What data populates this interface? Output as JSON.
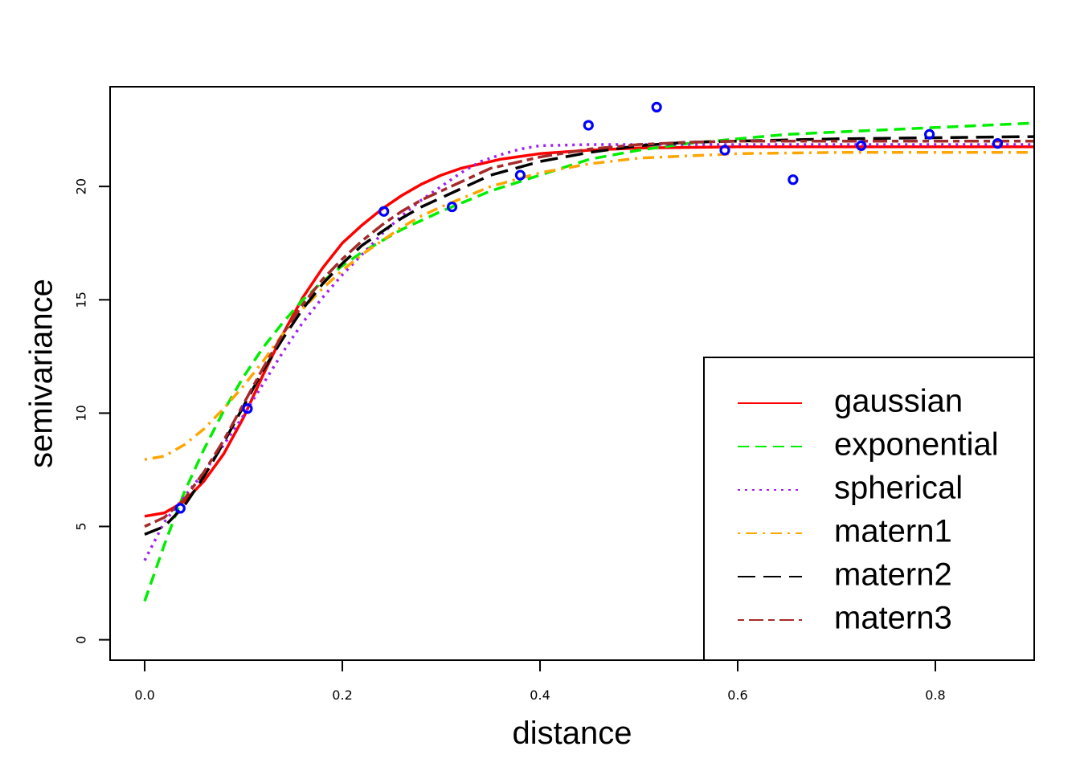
{
  "chart_data": {
    "type": "scatter",
    "title": "",
    "xlabel": "distance",
    "ylabel": "semivariance",
    "xlim": [
      -0.035,
      0.9
    ],
    "ylim": [
      -0.9,
      24.4
    ],
    "x_ticks": [
      0.0,
      0.2,
      0.4,
      0.6,
      0.8
    ],
    "x_tick_labels": [
      "0.0",
      "0.2",
      "0.4",
      "0.6",
      "0.8"
    ],
    "y_ticks": [
      0,
      5,
      10,
      15,
      20
    ],
    "y_tick_labels": [
      "0",
      "5",
      "10",
      "15",
      "20"
    ],
    "grid": false,
    "legend_position": "bottom-right",
    "points": {
      "color": "#0000ff",
      "x": [
        0.036,
        0.104,
        0.242,
        0.311,
        0.38,
        0.449,
        0.518,
        0.587,
        0.656,
        0.725,
        0.794,
        0.863
      ],
      "y": [
        5.8,
        10.2,
        18.9,
        19.1,
        20.5,
        22.7,
        23.5,
        21.6,
        20.3,
        21.8,
        22.3,
        21.9
      ]
    },
    "series": [
      {
        "name": "gaussian",
        "color": "#ff0000",
        "dash": "solid",
        "x": [
          0.0,
          0.02,
          0.04,
          0.06,
          0.08,
          0.1,
          0.12,
          0.14,
          0.16,
          0.18,
          0.2,
          0.22,
          0.24,
          0.26,
          0.28,
          0.3,
          0.32,
          0.34,
          0.36,
          0.4,
          0.45,
          0.5,
          0.6,
          0.7,
          0.8,
          0.9
        ],
        "y": [
          5.45,
          5.6,
          6.1,
          7.0,
          8.2,
          9.8,
          11.7,
          13.5,
          15.1,
          16.4,
          17.5,
          18.3,
          19.0,
          19.6,
          20.1,
          20.5,
          20.8,
          21.0,
          21.2,
          21.45,
          21.6,
          21.7,
          21.75,
          21.75,
          21.75,
          21.75
        ]
      },
      {
        "name": "exponential",
        "color": "#00ee00",
        "dash": "dashed",
        "x": [
          0.0,
          0.02,
          0.04,
          0.06,
          0.08,
          0.1,
          0.12,
          0.14,
          0.16,
          0.18,
          0.2,
          0.22,
          0.24,
          0.26,
          0.28,
          0.3,
          0.35,
          0.4,
          0.45,
          0.5,
          0.55,
          0.6,
          0.65,
          0.7,
          0.8,
          0.9
        ],
        "y": [
          1.7,
          4.2,
          6.5,
          8.4,
          10.1,
          11.6,
          12.9,
          14.0,
          15.0,
          15.8,
          16.5,
          17.1,
          17.6,
          18.1,
          18.5,
          18.9,
          19.8,
          20.5,
          21.2,
          21.6,
          21.9,
          22.1,
          22.3,
          22.4,
          22.6,
          22.8
        ]
      },
      {
        "name": "spherical",
        "color": "#a020f0",
        "dash": "dotted",
        "x": [
          0.0,
          0.02,
          0.04,
          0.06,
          0.08,
          0.1,
          0.12,
          0.14,
          0.16,
          0.18,
          0.2,
          0.22,
          0.24,
          0.26,
          0.28,
          0.3,
          0.32,
          0.34,
          0.36,
          0.38,
          0.4,
          0.45,
          0.5,
          0.6,
          0.7,
          0.8,
          0.9
        ],
        "y": [
          3.5,
          5.2,
          6.3,
          7.4,
          8.6,
          9.9,
          11.3,
          12.7,
          14.0,
          15.1,
          16.1,
          17.0,
          17.9,
          18.7,
          19.4,
          20.0,
          20.6,
          21.1,
          21.4,
          21.65,
          21.8,
          21.85,
          21.85,
          21.85,
          21.85,
          21.85,
          21.85
        ]
      },
      {
        "name": "matern1",
        "color": "#ffa500",
        "dash": "dashdot",
        "x": [
          0.0,
          0.02,
          0.04,
          0.06,
          0.08,
          0.1,
          0.12,
          0.14,
          0.16,
          0.18,
          0.2,
          0.22,
          0.24,
          0.26,
          0.28,
          0.3,
          0.35,
          0.4,
          0.45,
          0.5,
          0.6,
          0.7,
          0.8,
          0.9
        ],
        "y": [
          7.95,
          8.1,
          8.6,
          9.3,
          10.2,
          11.2,
          12.3,
          13.5,
          14.6,
          15.5,
          16.3,
          17.0,
          17.6,
          18.2,
          18.7,
          19.1,
          20.0,
          20.6,
          21.0,
          21.25,
          21.45,
          21.5,
          21.5,
          21.5
        ]
      },
      {
        "name": "matern2",
        "color": "#000000",
        "dash": "longdash",
        "x": [
          0.0,
          0.02,
          0.04,
          0.06,
          0.08,
          0.1,
          0.12,
          0.14,
          0.16,
          0.18,
          0.2,
          0.22,
          0.24,
          0.26,
          0.28,
          0.3,
          0.35,
          0.4,
          0.45,
          0.5,
          0.55,
          0.6,
          0.7,
          0.8,
          0.9
        ],
        "y": [
          4.65,
          5.0,
          5.9,
          7.2,
          8.7,
          10.3,
          11.9,
          13.3,
          14.6,
          15.7,
          16.6,
          17.4,
          18.0,
          18.6,
          19.1,
          19.5,
          20.5,
          21.1,
          21.5,
          21.8,
          21.95,
          22.0,
          22.1,
          22.15,
          22.2
        ]
      },
      {
        "name": "matern3",
        "color": "#a52a2a",
        "dash": "twodash",
        "x": [
          0.0,
          0.02,
          0.04,
          0.06,
          0.08,
          0.1,
          0.12,
          0.14,
          0.16,
          0.18,
          0.2,
          0.22,
          0.24,
          0.26,
          0.28,
          0.3,
          0.35,
          0.4,
          0.45,
          0.5,
          0.55,
          0.6,
          0.7,
          0.8,
          0.9
        ],
        "y": [
          5.0,
          5.4,
          6.2,
          7.4,
          8.8,
          10.4,
          12.0,
          13.5,
          14.8,
          15.9,
          16.8,
          17.6,
          18.3,
          18.9,
          19.4,
          19.8,
          20.8,
          21.3,
          21.65,
          21.85,
          21.95,
          22.0,
          22.0,
          22.0,
          22.0
        ]
      }
    ]
  }
}
